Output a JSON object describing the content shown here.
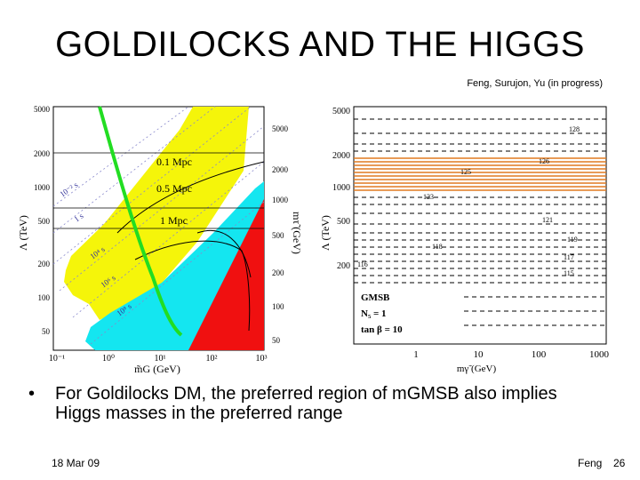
{
  "slide": {
    "title": "GOLDILOCKS AND THE HIGGS",
    "credit": "Feng, Surujon, Yu (in progress)",
    "bullet": "For Goldilocks DM, the preferred region of mGMSB also implies Higgs masses in the preferred range",
    "footer_date": "18 Mar 09",
    "footer_author": "Feng",
    "page_number": "26"
  },
  "left_plot": {
    "y_ticks": [
      "5000",
      "2000",
      "1000",
      "500",
      "200",
      "100",
      "50"
    ],
    "x_ticks": [
      "10⁻¹",
      "10⁰",
      "10¹",
      "10²",
      "10³"
    ],
    "right_ticks": [
      "5000",
      "2000",
      "1000",
      "500",
      "200",
      "100",
      "50"
    ],
    "y_label": "Λ (TeV)",
    "x_label": "m̃G (GeV)",
    "right_label": "mτ̃ (GeV)",
    "contour_labels": [
      "0.1 Mpc",
      "0.5 Mpc",
      "1 Mpc"
    ],
    "diag_labels": [
      "10⁻² s",
      "1 s",
      "10⁴ s",
      "10⁶ s",
      "10⁸ s"
    ],
    "colors": {
      "yellow": "#f5f50a",
      "cyan": "#14e6f0",
      "red": "#f01010",
      "green": "#22dd22"
    }
  },
  "right_plot": {
    "y_ticks": [
      "5000",
      "2000",
      "1000",
      "500",
      "200"
    ],
    "x_ticks": [
      "1",
      "10",
      "100",
      "1000"
    ],
    "y_label": "Λ (TeV)",
    "x_label": "mγ̃ (GeV)",
    "higgs_labels": [
      "128",
      "126",
      "125",
      "123",
      "121",
      "119",
      "118",
      "117",
      "116",
      "115"
    ],
    "legend": [
      "GMSB",
      "N₅ = 1",
      "tan β = 10"
    ],
    "colors": {
      "band": "#e07a20"
    }
  }
}
